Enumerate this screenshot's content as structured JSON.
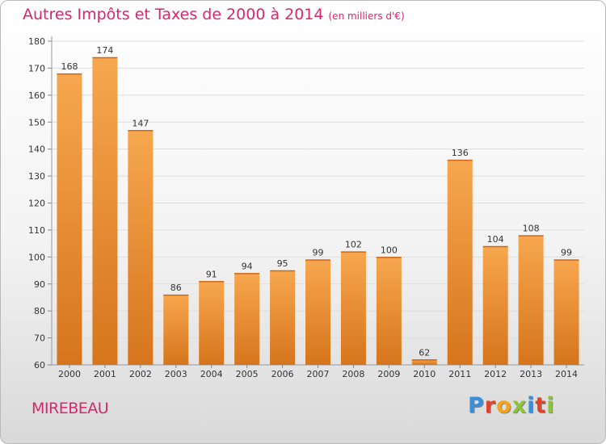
{
  "title": "Autres Impôts et Taxes de 2000 à 2014",
  "subtitle": "(en milliers d'€)",
  "city": "MIREBEAU",
  "logo": {
    "letters": [
      "P",
      "r",
      "o",
      "x",
      "i",
      "t",
      "i"
    ],
    "colors": [
      "#3a8fd8",
      "#e0432a",
      "#f2a51a",
      "#8cc43c",
      "#3a8fd8",
      "#e0432a",
      "#8cc43c"
    ]
  },
  "colors": {
    "bar_top": "#f7a74f",
    "bar_bottom": "#d6751c",
    "accent": "#d5286f",
    "grid": "#dddddd"
  },
  "chart_data": {
    "type": "bar",
    "title": "Autres Impôts et Taxes de 2000 à 2014",
    "subtitle": "(en milliers d'€)",
    "categories": [
      "2000",
      "2001",
      "2002",
      "2003",
      "2004",
      "2005",
      "2006",
      "2007",
      "2008",
      "2009",
      "2010",
      "2011",
      "2012",
      "2013",
      "2014"
    ],
    "values": [
      168,
      174,
      147,
      86,
      91,
      94,
      95,
      99,
      102,
      100,
      62,
      136,
      104,
      108,
      99
    ],
    "ylim": [
      60,
      180
    ],
    "yticks": [
      60,
      70,
      80,
      90,
      100,
      110,
      120,
      130,
      140,
      150,
      160,
      170,
      180
    ],
    "grid": true,
    "legend": "none"
  }
}
